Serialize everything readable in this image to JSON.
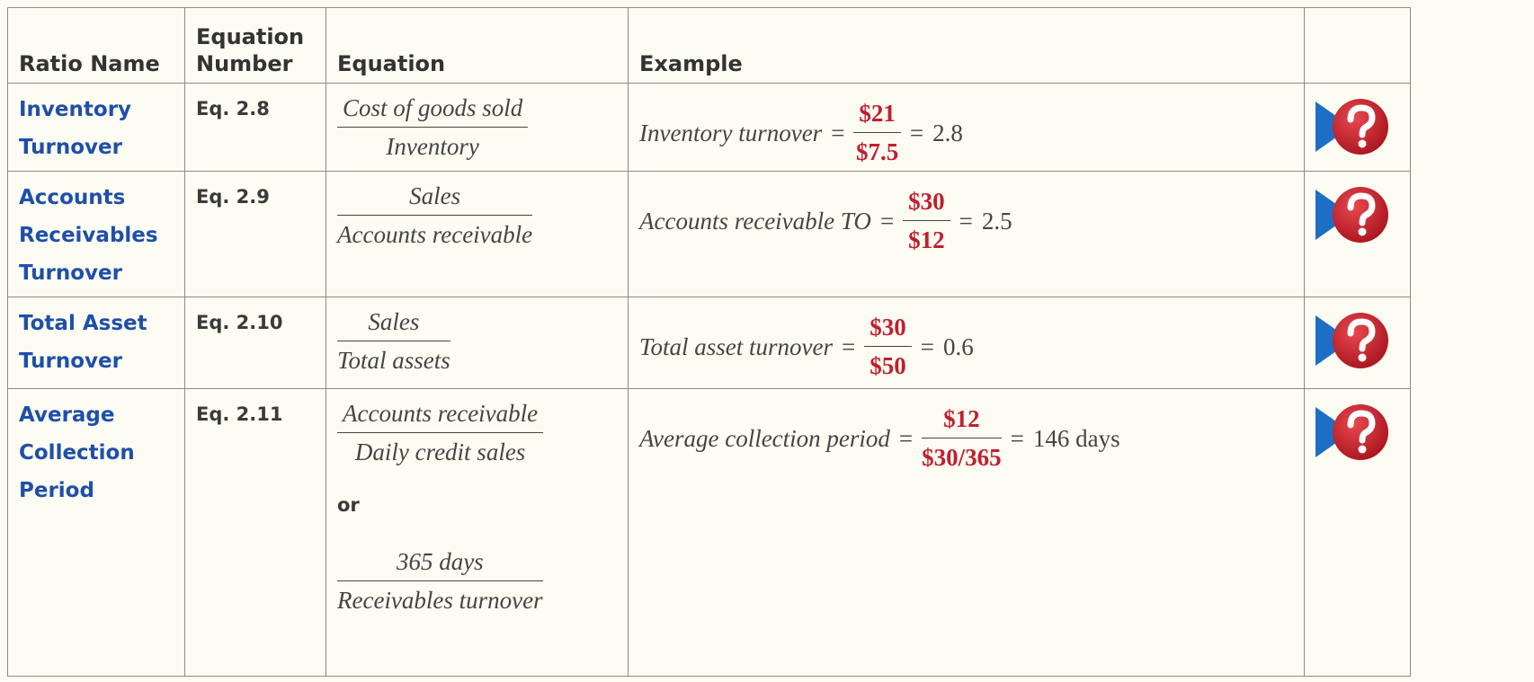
{
  "table": {
    "header": [
      "Ratio Name",
      "Equation Number",
      "Equation",
      "Example"
    ],
    "equals": "=",
    "rows": [
      {
        "name": "Inventory Turnover",
        "number": "Eq. 2.8",
        "equations": [
          {
            "numerator": "Cost of goods sold",
            "denominator": "Inventory"
          }
        ],
        "example": {
          "label": "Inventory turnover",
          "numerator": "$21",
          "denominator": "$7.5",
          "result": "2.8"
        }
      },
      {
        "name": "Accounts Receivables Turnover",
        "number": "Eq. 2.9",
        "equations": [
          {
            "numerator": "Sales",
            "denominator": "Accounts receivable"
          }
        ],
        "example": {
          "label": "Accounts receivable TO",
          "numerator": "$30",
          "denominator": "$12",
          "result": "2.5"
        }
      },
      {
        "name": "Total Asset Turnover",
        "number": "Eq. 2.10",
        "equations": [
          {
            "numerator": "Sales",
            "denominator": "Total assets"
          }
        ],
        "example": {
          "label": "Total asset turnover",
          "numerator": "$30",
          "denominator": "$50",
          "result": "0.6"
        }
      },
      {
        "name": "Average Collection Period",
        "number": "Eq. 2.11",
        "equations": [
          {
            "numerator": "Accounts receivable",
            "denominator": "Daily credit sales"
          },
          {
            "numerator": "365 days",
            "denominator": "Receivables turnover"
          }
        ],
        "connector": "or",
        "example": {
          "label": "Average collection period",
          "numerator": "$12",
          "denominator": "$30/365",
          "result": "146 days"
        }
      }
    ]
  }
}
